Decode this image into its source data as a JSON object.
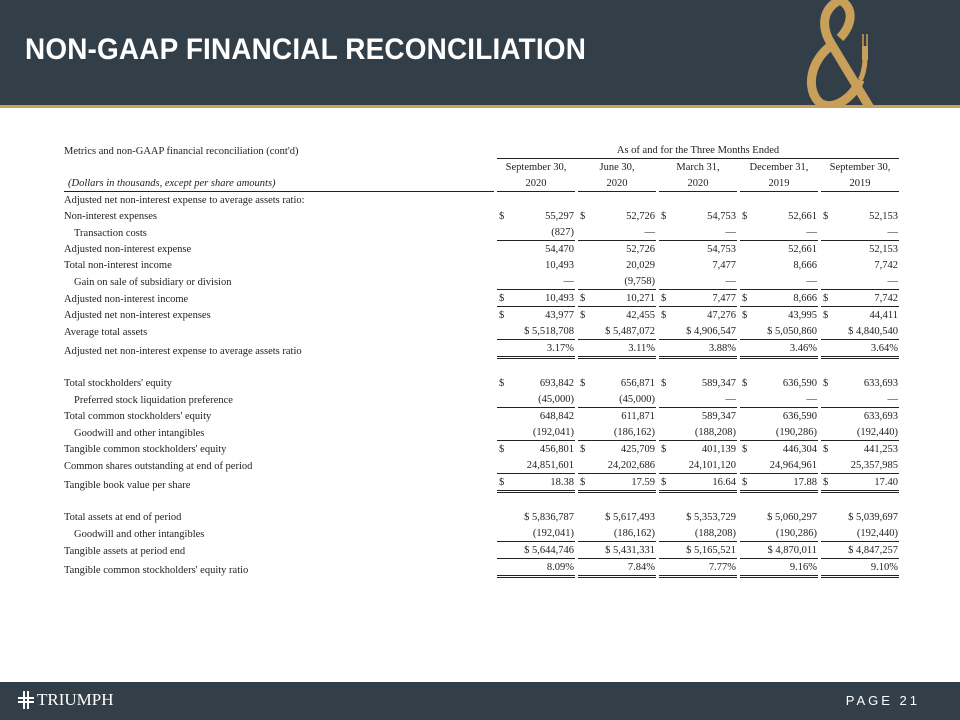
{
  "header": {
    "title": "NON-GAAP FINANCIAL RECONCILIATION",
    "accent": "#c9a05a",
    "background": "#333f48"
  },
  "footer": {
    "brand": "TRIUMPH",
    "page": "PAGE 21"
  },
  "table": {
    "caption": "Metrics and non-GAAP financial reconciliation (cont'd)",
    "period_header": "As of and for the Three Months Ended",
    "units_note": "(Dollars in thousands, except per share amounts)",
    "columns": [
      {
        "month": "September 30,",
        "year": "2020"
      },
      {
        "month": "June 30,",
        "year": "2020"
      },
      {
        "month": "March 31,",
        "year": "2020"
      },
      {
        "month": "December 31,",
        "year": "2019"
      },
      {
        "month": "September 30,",
        "year": "2019"
      }
    ],
    "rows": [
      {
        "label": "Adjusted net non-interest expense to average assets ratio:",
        "values": []
      },
      {
        "label": "Non-interest expenses",
        "dollar": true,
        "values": [
          "55,297",
          "52,726",
          "54,753",
          "52,661",
          "52,153"
        ]
      },
      {
        "label": "Transaction costs",
        "indent": true,
        "line": "single",
        "values": [
          "(827)",
          "—",
          "—",
          "—",
          "—"
        ]
      },
      {
        "label": "Adjusted non-interest expense",
        "values": [
          "54,470",
          "52,726",
          "54,753",
          "52,661",
          "52,153"
        ]
      },
      {
        "label": "Total non-interest income",
        "values": [
          "10,493",
          "20,029",
          "7,477",
          "8,666",
          "7,742"
        ]
      },
      {
        "label": "Gain on sale of subsidiary or division",
        "indent": true,
        "line": "single",
        "values": [
          "—",
          "(9,758)",
          "—",
          "—",
          "—"
        ]
      },
      {
        "label": "Adjusted non-interest income",
        "dollar": true,
        "line": "single",
        "values": [
          "10,493",
          "10,271",
          "7,477",
          "8,666",
          "7,742"
        ]
      },
      {
        "label": "Adjusted net non-interest expenses",
        "dollar": true,
        "values": [
          "43,977",
          "42,455",
          "47,276",
          "43,995",
          "44,411"
        ]
      },
      {
        "label": "Average total assets",
        "line": "single",
        "values": [
          "$ 5,518,708",
          "$ 5,487,072",
          "$ 4,906,547",
          "$ 5,050,860",
          "$ 4,840,540"
        ]
      },
      {
        "label": "Adjusted net non-interest expense to average assets ratio",
        "line": "double",
        "values": [
          "3.17%",
          "3.11%",
          "3.88%",
          "3.46%",
          "3.64%"
        ]
      },
      {
        "label": "",
        "values": []
      },
      {
        "label": "Total stockholders' equity",
        "dollar": true,
        "values": [
          "693,842",
          "656,871",
          "589,347",
          "636,590",
          "633,693"
        ]
      },
      {
        "label": "Preferred stock liquidation preference",
        "indent": true,
        "line": "single",
        "values": [
          "(45,000)",
          "(45,000)",
          "—",
          "—",
          "—"
        ]
      },
      {
        "label": "Total common stockholders' equity",
        "values": [
          "648,842",
          "611,871",
          "589,347",
          "636,590",
          "633,693"
        ]
      },
      {
        "label": "Goodwill and other intangibles",
        "indent": true,
        "line": "single",
        "values": [
          "(192,041)",
          "(186,162)",
          "(188,208)",
          "(190,286)",
          "(192,440)"
        ]
      },
      {
        "label": "Tangible common stockholders' equity",
        "dollar": true,
        "values": [
          "456,801",
          "425,709",
          "401,139",
          "446,304",
          "441,253"
        ]
      },
      {
        "label": "Common shares outstanding at end of period",
        "line": "single",
        "values": [
          "24,851,601",
          "24,202,686",
          "24,101,120",
          "24,964,961",
          "25,357,985"
        ]
      },
      {
        "label": "Tangible book value per share",
        "dollar": true,
        "line": "double",
        "values": [
          "18.38",
          "17.59",
          "16.64",
          "17.88",
          "17.40"
        ]
      },
      {
        "label": "",
        "values": []
      },
      {
        "label": "Total assets at end of period",
        "values": [
          "$ 5,836,787",
          "$ 5,617,493",
          "$ 5,353,729",
          "$ 5,060,297",
          "$ 5,039,697"
        ]
      },
      {
        "label": "Goodwill and other intangibles",
        "indent": true,
        "line": "single",
        "values": [
          "(192,041)",
          "(186,162)",
          "(188,208)",
          "(190,286)",
          "(192,440)"
        ]
      },
      {
        "label": "Tangible assets at period end",
        "line": "single",
        "values": [
          "$ 5,644,746",
          "$ 5,431,331",
          "$ 5,165,521",
          "$ 4,870,011",
          "$ 4,847,257"
        ]
      },
      {
        "label": "Tangible common stockholders' equity ratio",
        "line": "double",
        "values": [
          "8.09%",
          "7.84%",
          "7.77%",
          "9.16%",
          "9.10%"
        ]
      }
    ]
  }
}
